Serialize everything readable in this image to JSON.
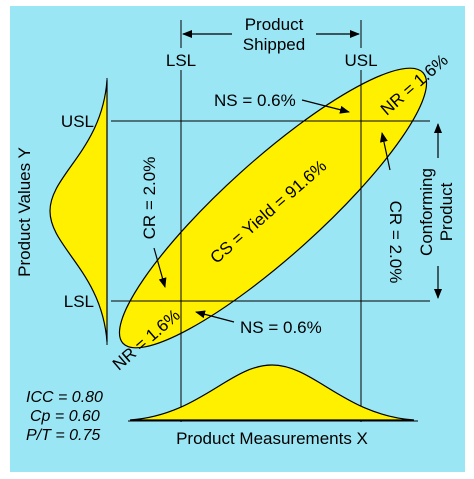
{
  "colors": {
    "background": "#9BE6F4",
    "ellipse_fill": "#FFF000",
    "distribution_fill": "#FFF000",
    "line": "#000000"
  },
  "top": {
    "product_shipped_line1": "Product",
    "product_shipped_line2": "Shipped",
    "lsl_x_label": "LSL",
    "usl_x_label": "USL"
  },
  "left": {
    "y_axis_title": "Product Values Y",
    "usl_y_label": "USL",
    "lsl_y_label": "LSL"
  },
  "right": {
    "conforming_line1": "Conforming",
    "conforming_line2": "Product"
  },
  "bottom": {
    "x_axis_title": "Product Measurements X"
  },
  "regions": {
    "ns_top": "NS = 0.6%",
    "ns_bottom": "NS = 0.6%",
    "cr_left": "CR = 2.0%",
    "cr_right": "CR = 2.0%",
    "cs_yield": "CS = Yield = 91.6%",
    "nr_top": "NR = 1.6%",
    "nr_bottom": "NR = 1.6%"
  },
  "stats": {
    "icc": "ICC = 0.80",
    "cp": "Cp = 0.60",
    "pt": "P/T = 0.75"
  }
}
